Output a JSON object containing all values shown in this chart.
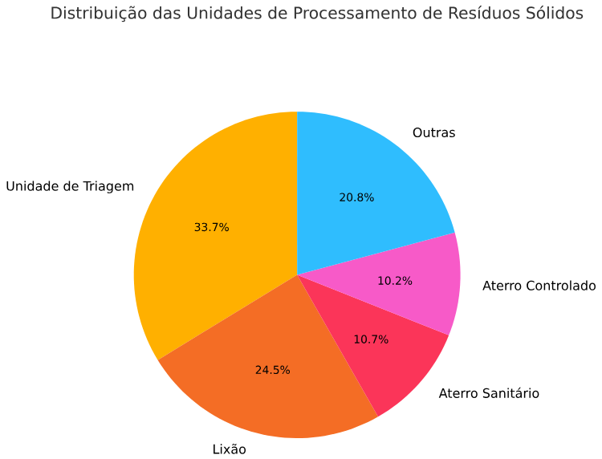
{
  "chart_data": {
    "type": "pie",
    "title": "Distribuição das Unidades de Processamento de Resíduos Sólidos",
    "categories": [
      "Unidade de Triagem",
      "Lixão",
      "Aterro Sanitário",
      "Aterro Controlado",
      "Outras"
    ],
    "values": [
      33.7,
      24.5,
      10.7,
      10.2,
      20.8
    ],
    "value_labels": [
      "33.7%",
      "24.5%",
      "10.7%",
      "10.2%",
      "20.8%"
    ],
    "colors": [
      "#ffb000",
      "#f46d25",
      "#fb3559",
      "#f75ac8",
      "#2fbdfe"
    ]
  }
}
